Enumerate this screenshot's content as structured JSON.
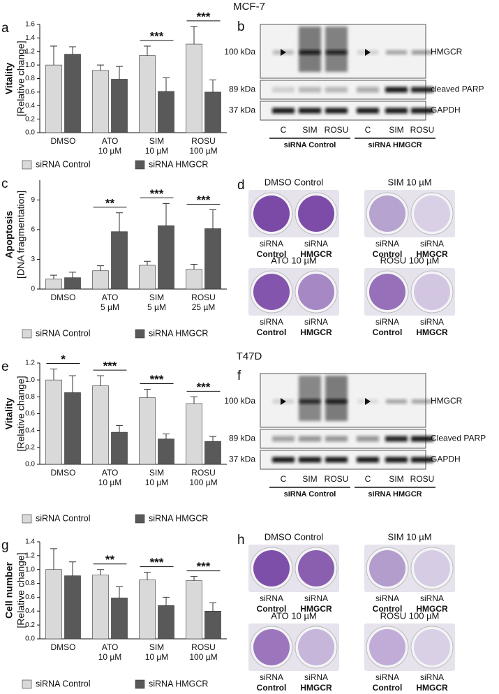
{
  "headers": [
    "MCF-7",
    "T47D"
  ],
  "chart_data": [
    {
      "type": "bar",
      "panel": "a",
      "ylabel": "Vitality",
      "ylabel_sub": "[Relative change]",
      "categories": [
        "DMSO",
        "ATO\n10 µM",
        "SIM\n10 µM",
        "ROSU\n100 µM"
      ],
      "series": [
        {
          "name": "siRNA Control",
          "color": "#d9d9d9",
          "values": [
            1.0,
            0.92,
            1.14,
            1.31
          ],
          "errors": [
            0.28,
            0.08,
            0.14,
            0.26
          ]
        },
        {
          "name": "siRNA HMGCR",
          "color": "#595959",
          "values": [
            1.16,
            0.79,
            0.61,
            0.6
          ],
          "errors": [
            0.11,
            0.19,
            0.2,
            0.18
          ]
        }
      ],
      "significance": [
        null,
        null,
        "***",
        "***"
      ],
      "ylim": [
        0,
        1.6
      ],
      "yticks": [
        {
          "value": 0,
          "label": "0.0"
        },
        0.2,
        0.4,
        0.6,
        0.8,
        {
          "value": 1,
          "label": "1.0"
        },
        1.2,
        1.4,
        1.6
      ]
    },
    {
      "type": "bar",
      "panel": "c",
      "ylabel": "Apoptosis",
      "ylabel_sub": "[DNA fragmentation]",
      "categories": [
        "DMSO",
        "ATO\n5 µM",
        "SIM\n5 µM",
        "ROSU\n25 µM"
      ],
      "series": [
        {
          "name": "siRNA Control",
          "color": "#d9d9d9",
          "values": [
            1.0,
            1.85,
            2.4,
            2.0
          ],
          "errors": [
            0.4,
            0.5,
            0.4,
            0.5
          ]
        },
        {
          "name": "siRNA HMGCR",
          "color": "#595959",
          "values": [
            1.15,
            5.8,
            6.4,
            6.1
          ],
          "errors": [
            0.55,
            1.9,
            2.25,
            1.9
          ]
        }
      ],
      "significance": [
        null,
        "**",
        "***",
        "***"
      ],
      "ylim": [
        0,
        11
      ],
      "yticks": [
        0,
        3,
        6,
        9
      ]
    },
    {
      "type": "bar",
      "panel": "e",
      "ylabel": "Vitality",
      "ylabel_sub": "[Relative change]",
      "categories": [
        "DMSO",
        "ATO\n10 µM",
        "SIM\n10 µM",
        "ROSU\n100 µM"
      ],
      "series": [
        {
          "name": "siRNA Control",
          "color": "#d9d9d9",
          "values": [
            1.0,
            0.93,
            0.79,
            0.72
          ],
          "errors": [
            0.13,
            0.12,
            0.1,
            0.08
          ]
        },
        {
          "name": "siRNA HMGCR",
          "color": "#595959",
          "values": [
            0.85,
            0.38,
            0.3,
            0.27
          ],
          "errors": [
            0.2,
            0.08,
            0.06,
            0.06
          ]
        }
      ],
      "significance": [
        "*",
        "***",
        "***",
        "***"
      ],
      "ylim": [
        0,
        1.2
      ],
      "yticks": [
        {
          "value": 0,
          "label": "0.0"
        },
        0.2,
        0.4,
        0.6,
        0.8,
        {
          "value": 1,
          "label": "1.0"
        },
        1.2
      ]
    },
    {
      "type": "bar",
      "panel": "g",
      "ylabel": "Cell number",
      "ylabel_sub": "[Relative change]",
      "categories": [
        "DMSO",
        "ATO\n10 µM",
        "SIM\n10 µM",
        "ROSU\n100 µM"
      ],
      "series": [
        {
          "name": "siRNA Control",
          "color": "#d9d9d9",
          "values": [
            1.0,
            0.92,
            0.85,
            0.84
          ],
          "errors": [
            0.3,
            0.08,
            0.11,
            0.06
          ]
        },
        {
          "name": "siRNA HMGCR",
          "color": "#595959",
          "values": [
            0.91,
            0.59,
            0.48,
            0.4
          ],
          "errors": [
            0.2,
            0.16,
            0.12,
            0.12
          ]
        }
      ],
      "significance": [
        null,
        "**",
        "***",
        "***"
      ],
      "ylim": [
        0,
        1.4
      ],
      "yticks": [
        {
          "value": 0,
          "label": "0.0"
        },
        0.2,
        0.4,
        0.6,
        0.8,
        {
          "value": 1,
          "label": "1.0"
        },
        1.2,
        1.4
      ]
    }
  ],
  "blots": [
    {
      "panel": "b",
      "markers": [
        "100 kDa",
        "89 kDa",
        "37 kDa"
      ],
      "proteins": [
        "HMGCR",
        "cleaved PARP",
        "GAPDH"
      ],
      "lanes": [
        "C",
        "SIM",
        "ROSU",
        "C",
        "SIM",
        "ROSU"
      ],
      "groups": [
        "siRNA Control",
        "siRNA HMGCR"
      ]
    },
    {
      "panel": "f",
      "markers": [
        "100 kDa",
        "89 kDa",
        "37 kDa"
      ],
      "proteins": [
        "HMGCR",
        "Cleaved PARP",
        "GAPDH"
      ],
      "lanes": [
        "C",
        "SIM",
        "ROSU",
        "C",
        "SIM",
        "ROSU"
      ],
      "groups": [
        "siRNA Control",
        "siRNA HMGCR"
      ]
    }
  ],
  "colonies": [
    {
      "panel": "d",
      "conditions": [
        {
          "title": "DMSO Control",
          "wells": [
            [
              "siRNA",
              "Control"
            ],
            [
              "siRNA",
              "HMGCR"
            ]
          ]
        },
        {
          "title": "SIM 10 µM",
          "wells": [
            [
              "siRNA",
              "Control"
            ],
            [
              "siRNA",
              "HMGCR"
            ]
          ]
        },
        {
          "title": "ATO 10 µM",
          "wells": [
            [
              "siRNA",
              "Control"
            ],
            [
              "siRNA",
              "HMGCR"
            ]
          ]
        },
        {
          "title": "ROSU 100 µM",
          "wells": [
            [
              "siRNA",
              "Control"
            ],
            [
              "siRNA",
              "HMGCR"
            ]
          ]
        }
      ]
    },
    {
      "panel": "h",
      "conditions": [
        {
          "title": "DMSO Control",
          "wells": [
            [
              "siRNA",
              "Control"
            ],
            [
              "siRNA",
              "HMGCR"
            ]
          ]
        },
        {
          "title": "SIM 10 µM",
          "wells": [
            [
              "siRNA",
              "Control"
            ],
            [
              "siRNA",
              "HMGCR"
            ]
          ]
        },
        {
          "title": "ATO 10 µM",
          "wells": [
            [
              "siRNA",
              "Control"
            ],
            [
              "siRNA",
              "HMGCR"
            ]
          ]
        },
        {
          "title": "ROSU 100 µM",
          "wells": [
            [
              "siRNA",
              "Control"
            ],
            [
              "siRNA",
              "HMGCR"
            ]
          ]
        }
      ]
    }
  ]
}
